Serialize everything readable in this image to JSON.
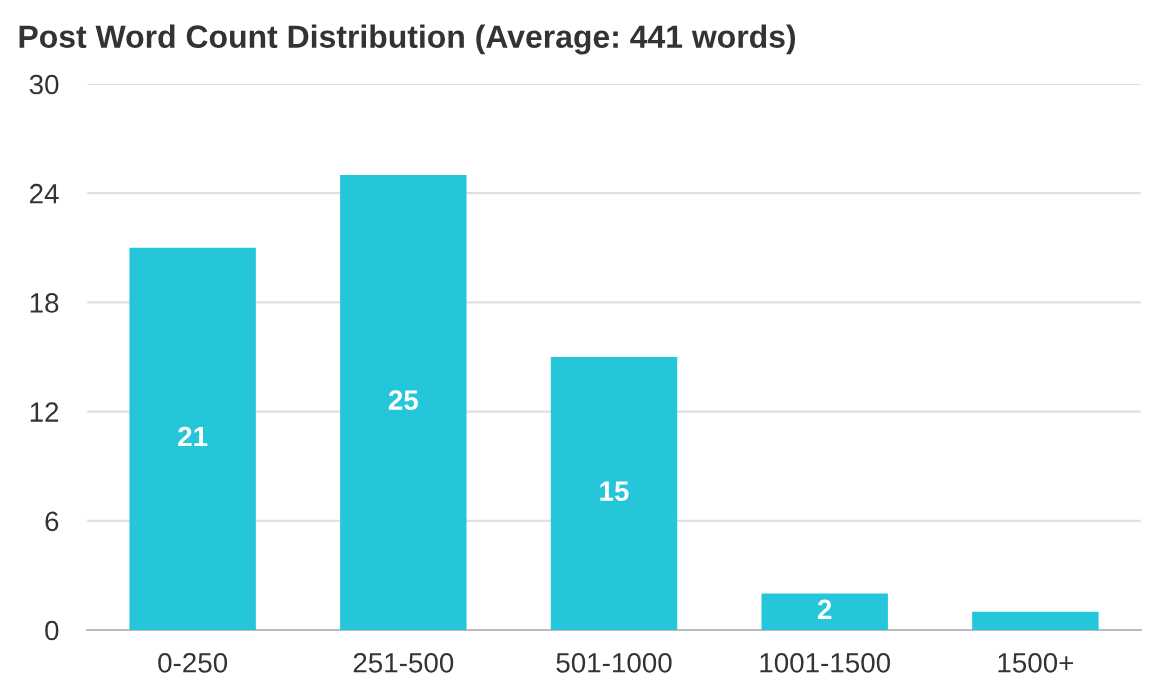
{
  "chart_data": {
    "type": "bar",
    "title": "Post Word Count Distribution (Average: 441 words)",
    "categories": [
      "0-250",
      "251-500",
      "501-1000",
      "1001-1500",
      "1500+"
    ],
    "values": [
      21,
      25,
      15,
      2,
      1
    ],
    "value_labels": [
      "21",
      "25",
      "15",
      "2",
      null
    ],
    "color": "#26c6da",
    "ylim": [
      0,
      30
    ],
    "yticks": [
      0,
      6,
      12,
      18,
      24,
      30
    ],
    "grid": "y"
  }
}
